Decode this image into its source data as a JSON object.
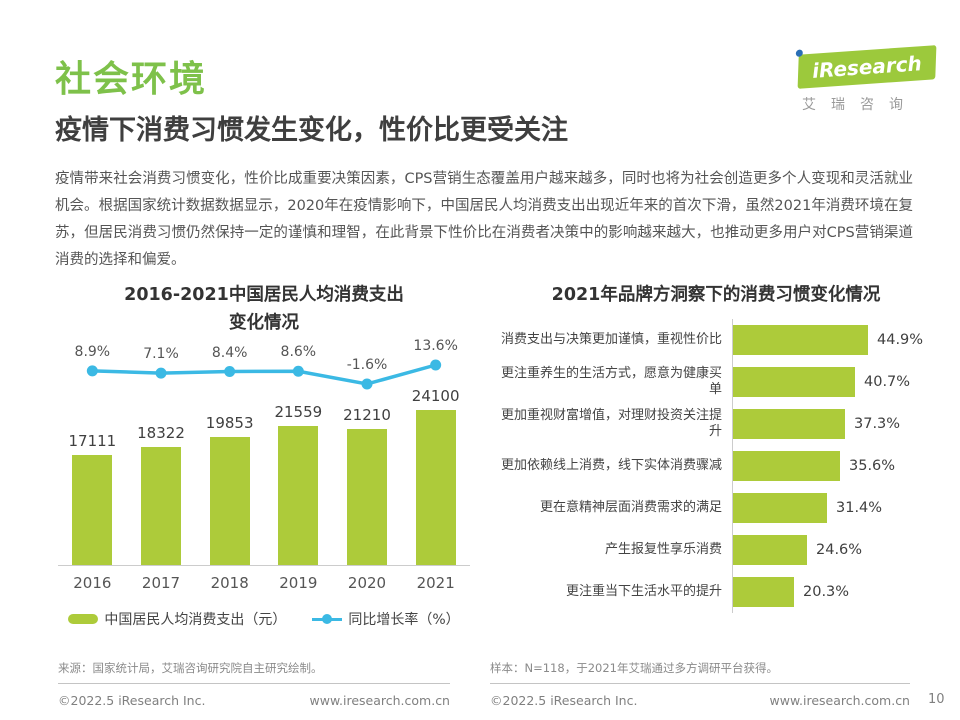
{
  "header": {
    "section_title": "社会环境",
    "headline": "疫情下消费习惯发生变化，性价比更受关注",
    "logo": {
      "brand": "iResearch",
      "subtext": "艾瑞咨询"
    }
  },
  "body_text": "疫情带来社会消费习惯变化，性价比成重要决策因素，CPS营销生态覆盖用户越来越多，同时也将为社会创造更多个人变现和灵活就业机会。根据国家统计数据数据显示，2020年在疫情影响下，中国居民人均消费支出出现近年来的首次下滑，虽然2021年消费环境在复苏，但居民消费习惯仍然保持一定的谨慎和理智，在此背景下性价比在消费者决策中的影响越来越大，也推动更多用户对CPS营销渠道消费的选择和偏爱。",
  "chart_data": [
    {
      "type": "bar",
      "subtype": "bar+line-combo",
      "title": "2016-2021中国居民人均消费支出变化情况",
      "title_lines": [
        "2016-2021中国居民人均消费支出",
        "变化情况"
      ],
      "categories": [
        "2016",
        "2017",
        "2018",
        "2019",
        "2020",
        "2021"
      ],
      "series": [
        {
          "name": "中国居民人均消费支出（元）",
          "type": "bar",
          "color": "#adcb3a",
          "values": [
            17111,
            18322,
            19853,
            21559,
            21210,
            24100
          ]
        },
        {
          "name": "同比增长率（%）",
          "type": "line",
          "color": "#3bb9e4",
          "values": [
            8.9,
            7.1,
            8.4,
            8.6,
            -1.6,
            13.6
          ],
          "value_labels": [
            "8.9%",
            "7.1%",
            "8.4%",
            "8.6%",
            "-1.6%",
            "13.6%"
          ]
        }
      ],
      "ylim": [
        0,
        24100
      ],
      "grid": false,
      "legend_position": "bottom"
    },
    {
      "type": "bar",
      "orientation": "horizontal",
      "title": "2021年品牌方洞察下的消费习惯变化情况",
      "categories": [
        "消费支出与决策更加谨慎，重视性价比",
        "更注重养生的生活方式，愿意为健康买单",
        "更加重视财富增值，对理财投资关注提升",
        "更加依赖线上消费，线下实体消费骤减",
        "更在意精神层面消费需求的满足",
        "产生报复性享乐消费",
        "更注重当下生活水平的提升"
      ],
      "values": [
        44.9,
        40.7,
        37.3,
        35.6,
        31.4,
        24.6,
        20.3
      ],
      "value_labels": [
        "44.9%",
        "40.7%",
        "37.3%",
        "35.6%",
        "31.4%",
        "24.6%",
        "20.3%"
      ],
      "xlim": [
        0,
        50
      ],
      "color": "#adcb3a",
      "grid": false
    }
  ],
  "footnotes": {
    "left_source": "来源：国家统计局，艾瑞咨询研究院自主研究绘制。",
    "right_source": "样本：N=118，于2021年艾瑞通过多方调研平台获得。"
  },
  "footer": {
    "left": {
      "copyright": "©2022.5 iResearch Inc.",
      "site": "www.iresearch.com.cn"
    },
    "right": {
      "copyright": "©2022.5 iResearch Inc.",
      "site": "www.iresearch.com.cn"
    },
    "page_number": "10"
  },
  "colors": {
    "bar_green": "#adcb3a",
    "line_blue": "#3bb9e4",
    "title_green": "#7ec14a",
    "logo_green": "#9cc93c",
    "logo_dot_blue": "#2a6fb5"
  }
}
